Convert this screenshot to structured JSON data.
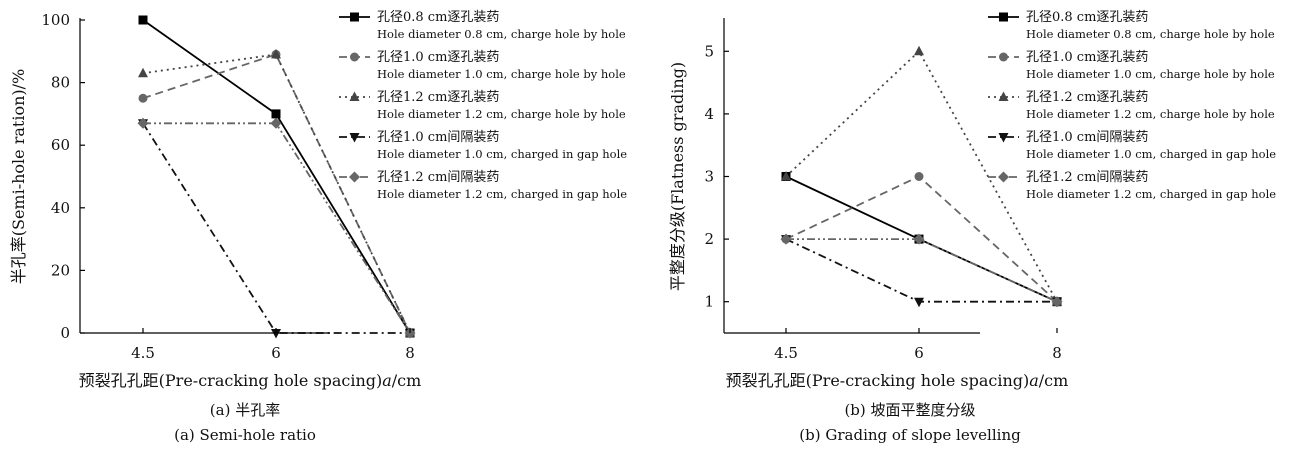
{
  "chart_data": [
    {
      "type": "line",
      "caption_cn": "(a) 半孔率",
      "caption_en": "(a) Semi-hole ratio",
      "xlabel_prefix": "预裂孔孔距(Pre-cracking hole spacing)",
      "xlabel_var": "a",
      "xlabel_unit": "/cm",
      "ylabel": "半孔率(Semi-hole ration)/%",
      "categories": [
        "4.5",
        "6",
        "8"
      ],
      "ylim": [
        0,
        100
      ],
      "yticks": [
        0,
        20,
        40,
        60,
        80,
        100
      ],
      "legend_position": "top-right",
      "series": [
        {
          "name_cn": "孔径0.8 cm逐孔装药",
          "name_en": "Hole diameter 0.8 cm, charge hole by hole",
          "values": [
            100,
            70,
            0
          ],
          "marker": "square",
          "dash": "solid",
          "color": "#000000"
        },
        {
          "name_cn": "孔径1.0 cm逐孔装药",
          "name_en": "Hole diameter 1.0 cm, charge hole by hole",
          "values": [
            75,
            89,
            0
          ],
          "marker": "circle",
          "dash": "dash",
          "color": "#666666"
        },
        {
          "name_cn": "孔径1.2 cm逐孔装药",
          "name_en": "Hole diameter 1.2 cm, charge hole by hole",
          "values": [
            83,
            89,
            0
          ],
          "marker": "triangle-up",
          "dash": "dot",
          "color": "#444444"
        },
        {
          "name_cn": "孔径1.0 cm间隔装药",
          "name_en": "Hole diameter 1.0 cm, charged in gap hole",
          "values": [
            67,
            0,
            0
          ],
          "marker": "triangle-down",
          "dash": "dashdot",
          "color": "#111111"
        },
        {
          "name_cn": "孔径1.2 cm间隔装药",
          "name_en": "Hole diameter 1.2 cm, charged in gap hole",
          "values": [
            67,
            67,
            0
          ],
          "marker": "diamond",
          "dash": "dashdotdot",
          "color": "#666666"
        }
      ]
    },
    {
      "type": "line",
      "caption_cn": "(b) 坡面平整度分级",
      "caption_en": "(b) Grading of slope levelling",
      "xlabel_prefix": "预裂孔孔距(Pre-cracking hole spacing)",
      "xlabel_var": "a",
      "xlabel_unit": "/cm",
      "ylabel": "平整度分级(Flatness grading)",
      "categories": [
        "4.5",
        "6",
        "8"
      ],
      "ylim": [
        0.5,
        5.5
      ],
      "yticks": [
        1,
        2,
        3,
        4,
        5
      ],
      "legend_position": "top-right",
      "series": [
        {
          "name_cn": "孔径0.8 cm逐孔装药",
          "name_en": "Hole diameter 0.8 cm, charge hole by hole",
          "values": [
            3,
            2,
            1
          ],
          "marker": "square",
          "dash": "solid",
          "color": "#000000"
        },
        {
          "name_cn": "孔径1.0 cm逐孔装药",
          "name_en": "Hole diameter 1.0 cm, charge hole by hole",
          "values": [
            2,
            3,
            1
          ],
          "marker": "circle",
          "dash": "dash",
          "color": "#666666"
        },
        {
          "name_cn": "孔径1.2 cm逐孔装药",
          "name_en": "Hole diameter 1.2 cm, charge hole by hole",
          "values": [
            3,
            5,
            1
          ],
          "marker": "triangle-up",
          "dash": "dot",
          "color": "#444444"
        },
        {
          "name_cn": "孔径1.0 cm间隔装药",
          "name_en": "Hole diameter 1.0 cm, charged in gap hole",
          "values": [
            2,
            1,
            1
          ],
          "marker": "triangle-down",
          "dash": "dashdot",
          "color": "#111111"
        },
        {
          "name_cn": "孔径1.2 cm间隔装药",
          "name_en": "Hole diameter 1.2 cm, charged in gap hole",
          "values": [
            2,
            2,
            1
          ],
          "marker": "diamond",
          "dash": "dashdotdot",
          "color": "#666666"
        }
      ]
    }
  ]
}
